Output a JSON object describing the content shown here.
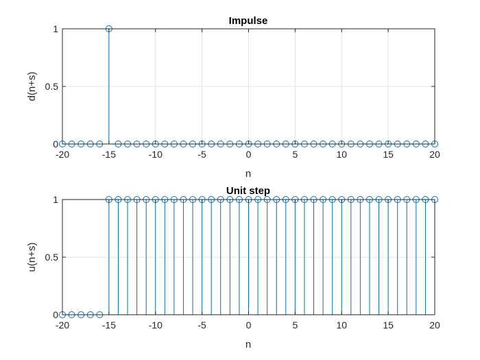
{
  "chart_data": [
    {
      "type": "stem",
      "title": "Impulse",
      "xlabel": "n",
      "ylabel": "d(n+s)",
      "xlim": [
        -20,
        20
      ],
      "ylim": [
        0,
        1
      ],
      "xticks": [
        -20,
        -15,
        -10,
        -5,
        0,
        5,
        10,
        15,
        20
      ],
      "yticks": [
        0,
        0.5,
        1
      ],
      "grid": true,
      "color": "#0072BD",
      "x": [
        -20,
        -19,
        -18,
        -17,
        -16,
        -15,
        -14,
        -13,
        -12,
        -11,
        -10,
        -9,
        -8,
        -7,
        -6,
        -5,
        -4,
        -3,
        -2,
        -1,
        0,
        1,
        2,
        3,
        4,
        5,
        6,
        7,
        8,
        9,
        10,
        11,
        12,
        13,
        14,
        15,
        16,
        17,
        18,
        19,
        20
      ],
      "y": [
        0,
        0,
        0,
        0,
        0,
        1,
        0,
        0,
        0,
        0,
        0,
        0,
        0,
        0,
        0,
        0,
        0,
        0,
        0,
        0,
        0,
        0,
        0,
        0,
        0,
        0,
        0,
        0,
        0,
        0,
        0,
        0,
        0,
        0,
        0,
        0,
        0,
        0,
        0,
        0,
        0
      ]
    },
    {
      "type": "stem",
      "title": "Unit step",
      "xlabel": "n",
      "ylabel": "u(n+s)",
      "xlim": [
        -20,
        20
      ],
      "ylim": [
        0,
        1
      ],
      "xticks": [
        -20,
        -15,
        -10,
        -5,
        0,
        5,
        10,
        15,
        20
      ],
      "yticks": [
        0,
        0.5,
        1
      ],
      "grid": true,
      "color": "#0072BD",
      "x": [
        -20,
        -19,
        -18,
        -17,
        -16,
        -15,
        -14,
        -13,
        -12,
        -11,
        -10,
        -9,
        -8,
        -7,
        -6,
        -5,
        -4,
        -3,
        -2,
        -1,
        0,
        1,
        2,
        3,
        4,
        5,
        6,
        7,
        8,
        9,
        10,
        11,
        12,
        13,
        14,
        15,
        16,
        17,
        18,
        19,
        20
      ],
      "y": [
        0,
        0,
        0,
        0,
        0,
        1,
        1,
        1,
        1,
        1,
        1,
        1,
        1,
        1,
        1,
        1,
        1,
        1,
        1,
        1,
        1,
        1,
        1,
        1,
        1,
        1,
        1,
        1,
        1,
        1,
        1,
        1,
        1,
        1,
        1,
        1,
        1,
        1,
        1,
        1,
        1
      ]
    }
  ]
}
